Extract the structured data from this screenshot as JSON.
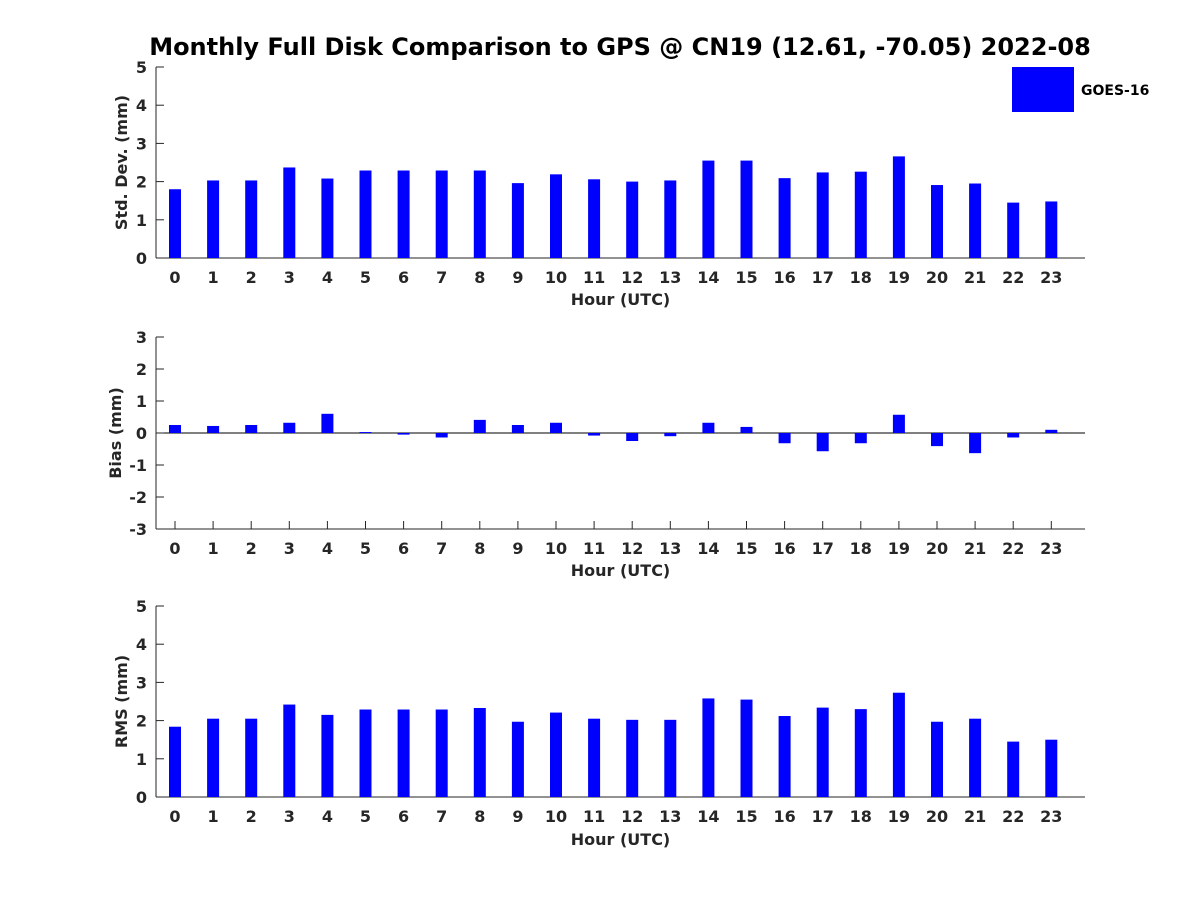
{
  "title": "Monthly Full Disk Comparison to GPS @ CN19 (12.61, -70.05) 2022-08",
  "legend": {
    "label": "GOES-16",
    "placement": "top-right"
  },
  "bar_color": "#0000ff",
  "chart_data": [
    {
      "type": "bar",
      "xlabel": "Hour (UTC)",
      "ylabel": "Std. Dev. (mm)",
      "ylim": [
        0,
        5
      ],
      "yticks": [
        0,
        1,
        2,
        3,
        4,
        5
      ],
      "categories": [
        "0",
        "1",
        "2",
        "3",
        "4",
        "5",
        "6",
        "7",
        "8",
        "9",
        "10",
        "11",
        "12",
        "13",
        "14",
        "15",
        "16",
        "17",
        "18",
        "19",
        "20",
        "21",
        "22",
        "23"
      ],
      "series": [
        {
          "name": "GOES-16",
          "values": [
            1.8,
            2.03,
            2.03,
            2.37,
            2.08,
            2.29,
            2.29,
            2.29,
            2.29,
            1.96,
            2.19,
            2.06,
            2.0,
            2.03,
            2.55,
            2.55,
            2.09,
            2.24,
            2.26,
            2.66,
            1.91,
            1.95,
            1.45,
            1.48
          ]
        }
      ]
    },
    {
      "type": "bar",
      "xlabel": "Hour (UTC)",
      "ylabel": "Bias (mm)",
      "ylim": [
        -3,
        3
      ],
      "yticks": [
        -3,
        -2,
        -1,
        0,
        1,
        2,
        3
      ],
      "categories": [
        "0",
        "1",
        "2",
        "3",
        "4",
        "5",
        "6",
        "7",
        "8",
        "9",
        "10",
        "11",
        "12",
        "13",
        "14",
        "15",
        "16",
        "17",
        "18",
        "19",
        "20",
        "21",
        "22",
        "23"
      ],
      "series": [
        {
          "name": "GOES-16",
          "values": [
            0.25,
            0.22,
            0.25,
            0.32,
            0.6,
            0.03,
            -0.05,
            -0.14,
            0.41,
            0.25,
            0.32,
            -0.08,
            -0.25,
            -0.1,
            0.32,
            0.19,
            -0.32,
            -0.57,
            -0.32,
            0.57,
            -0.41,
            -0.63,
            -0.14,
            0.1
          ]
        }
      ]
    },
    {
      "type": "bar",
      "xlabel": "Hour (UTC)",
      "ylabel": "RMS (mm)",
      "ylim": [
        0,
        5
      ],
      "yticks": [
        0,
        1,
        2,
        3,
        4,
        5
      ],
      "categories": [
        "0",
        "1",
        "2",
        "3",
        "4",
        "5",
        "6",
        "7",
        "8",
        "9",
        "10",
        "11",
        "12",
        "13",
        "14",
        "15",
        "16",
        "17",
        "18",
        "19",
        "20",
        "21",
        "22",
        "23"
      ],
      "series": [
        {
          "name": "GOES-16",
          "values": [
            1.84,
            2.05,
            2.05,
            2.42,
            2.15,
            2.29,
            2.29,
            2.29,
            2.33,
            1.97,
            2.21,
            2.05,
            2.02,
            2.02,
            2.58,
            2.55,
            2.12,
            2.34,
            2.3,
            2.73,
            1.97,
            2.05,
            1.45,
            1.5
          ]
        }
      ]
    }
  ]
}
